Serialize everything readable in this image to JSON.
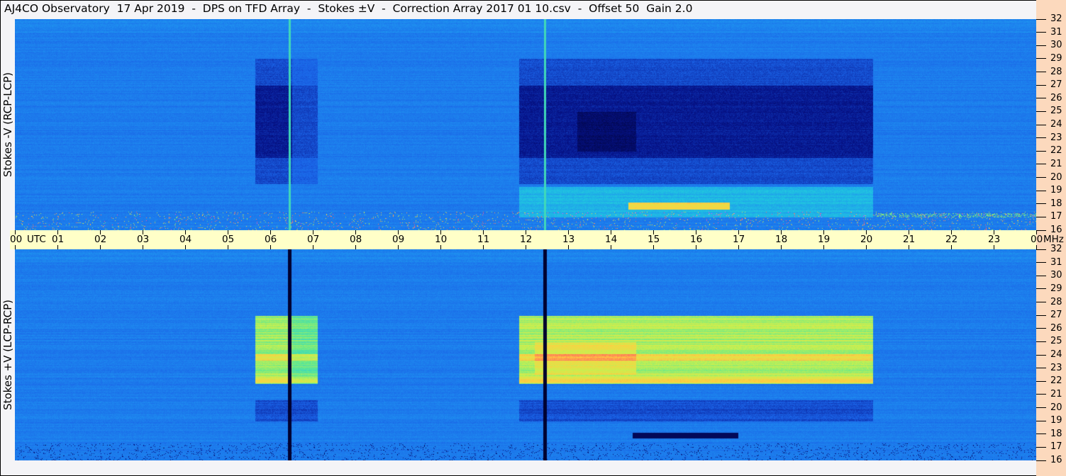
{
  "title": "AJ4CO Observatory  17 Apr 2019  -  DPS on TFD Array  -  Stokes ±V  -  Correction Array 2017 01 10.csv  -  Offset 50  Gain 2.0",
  "colors": {
    "background": "#f4f4f7",
    "time_axis": "#ffffc8",
    "freq_axis": "#fcd9bd"
  },
  "chart_data": {
    "type": "heatmap",
    "panels": [
      {
        "label": "Stokes -V (RCP-LCP)"
      },
      {
        "label": "Stokes +V (LCP-RCP)"
      }
    ],
    "x_unit_label": "UTC",
    "y_unit_label": "MHz",
    "xlim": [
      0,
      24
    ],
    "ylim": [
      16,
      32
    ],
    "x_ticks": [
      "00",
      "01",
      "02",
      "03",
      "04",
      "05",
      "06",
      "07",
      "08",
      "09",
      "10",
      "11",
      "12",
      "13",
      "14",
      "15",
      "16",
      "17",
      "18",
      "19",
      "20",
      "21",
      "22",
      "23",
      "00"
    ],
    "y_ticks": [
      "16",
      "17",
      "18",
      "19",
      "20",
      "21",
      "22",
      "23",
      "24",
      "25",
      "26",
      "27",
      "28",
      "29",
      "30",
      "31",
      "32"
    ],
    "colormap": [
      "#000030",
      "#06148c",
      "#1a62e6",
      "#1e8cf0",
      "#20c8e0",
      "#60e890",
      "#c8f050",
      "#ffd040",
      "#ff6060",
      "#ff40ff"
    ],
    "observation_blocks_utc": [
      [
        5.65,
        7.1
      ],
      [
        11.85,
        20.15
      ]
    ],
    "interference_lines_utc": [
      6.45,
      12.45
    ]
  }
}
